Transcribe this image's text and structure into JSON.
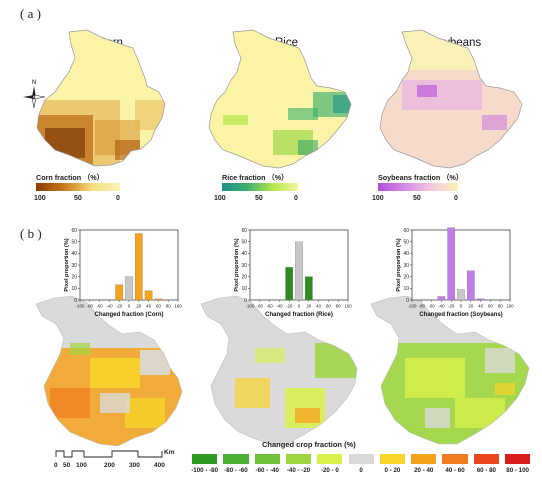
{
  "panel_a": {
    "label": "( a )",
    "maps": [
      {
        "title": "Corn",
        "colorbar_title": "Corn fraction （%）",
        "ticks": [
          "100",
          "50",
          "0"
        ],
        "gradient": [
          "#8a3a06",
          "#c97a16",
          "#f5dd7e",
          "#faf4b6"
        ]
      },
      {
        "title": "Rice",
        "colorbar_title": "Rice fraction （%）",
        "ticks": [
          "100",
          "50",
          "0"
        ],
        "gradient": [
          "#1f8f8e",
          "#3cb06d",
          "#b4e84a",
          "#f4f6a0"
        ]
      },
      {
        "title": "Soybeans",
        "colorbar_title": "Soybeans fraction （%）",
        "ticks": [
          "100",
          "50",
          "0"
        ],
        "gradient": [
          "#b34ddb",
          "#d68be6",
          "#f2c8df",
          "#faf4b6"
        ]
      }
    ]
  },
  "panel_b": {
    "label": "( b )",
    "legend": {
      "title": "Changed crop fraction (%)",
      "classes": [
        {
          "label": "-100 - -80",
          "color": "#2e9b23"
        },
        {
          "label": "-80 - -60",
          "color": "#4bb033"
        },
        {
          "label": "-60 - -40",
          "color": "#6dc23a"
        },
        {
          "label": "-40 - -20",
          "color": "#9fd63f"
        },
        {
          "label": "-20 - 0",
          "color": "#d9f14a"
        },
        {
          "label": "0",
          "color": "#d9d9d9"
        },
        {
          "label": "0 - 20",
          "color": "#f7d42a"
        },
        {
          "label": "20 - 40",
          "color": "#f5a21d"
        },
        {
          "label": "40 - 60",
          "color": "#f07a1e"
        },
        {
          "label": "60 - 80",
          "color": "#e9461f"
        },
        {
          "label": "80 - 100",
          "color": "#d91c1c"
        }
      ]
    },
    "scalebar": {
      "unit": "Km",
      "ticks": [
        "0",
        "50",
        "100",
        "200",
        "300",
        "400"
      ]
    }
  },
  "chart_data": [
    {
      "type": "bar",
      "title": "",
      "xlabel": "Changed fraction (Corn)",
      "ylabel": "Pixel proportion (%)",
      "x": [
        -100,
        -80,
        -60,
        -40,
        -20,
        0,
        20,
        40,
        60,
        80,
        100
      ],
      "values": [
        0,
        0,
        0,
        0,
        13,
        20,
        57,
        8,
        1,
        0,
        0
      ],
      "colors": [
        "#f5a21d",
        "#f5a21d",
        "#f5a21d",
        "#f5a21d",
        "#f5a21d",
        "#c8c8c8",
        "#f5a21d",
        "#f5a21d",
        "#f5a21d",
        "#f5a21d",
        "#f5a21d"
      ],
      "ylim": [
        0,
        60
      ],
      "yticks": [
        0,
        10,
        20,
        30,
        40,
        50,
        60
      ],
      "xtick_labels": [
        "-100",
        "-80",
        "-60",
        "-40",
        "-20",
        "0",
        "20",
        "40",
        "60",
        "80",
        "100"
      ]
    },
    {
      "type": "bar",
      "title": "",
      "xlabel": "Changed fraction (Rice)",
      "ylabel": "Pixel proportion (%)",
      "x": [
        -100,
        -80,
        -60,
        -40,
        -20,
        0,
        20,
        40,
        60,
        80,
        100
      ],
      "values": [
        0,
        0,
        0,
        0,
        28,
        50,
        20,
        0,
        0,
        0,
        0
      ],
      "colors": [
        "#2e8b1f",
        "#2e8b1f",
        "#2e8b1f",
        "#2e8b1f",
        "#2e8b1f",
        "#c8c8c8",
        "#2e8b1f",
        "#2e8b1f",
        "#2e8b1f",
        "#2e8b1f",
        "#2e8b1f"
      ],
      "ylim": [
        0,
        60
      ],
      "yticks": [
        0,
        10,
        20,
        30,
        40,
        50,
        60
      ],
      "xtick_labels": [
        "-100",
        "-80",
        "-60",
        "-40",
        "-20",
        "0",
        "20",
        "40",
        "60",
        "80",
        "100"
      ]
    },
    {
      "type": "bar",
      "title": "",
      "xlabel": "Changed fraction (Soybeans)",
      "ylabel": "Pixel proportion (%)",
      "x": [
        -100,
        -80,
        -60,
        -40,
        -20,
        0,
        20,
        40,
        60,
        80,
        100
      ],
      "values": [
        0,
        0,
        0,
        3,
        62,
        9,
        25,
        1,
        0,
        0,
        0
      ],
      "colors": [
        "#c27ae8",
        "#c27ae8",
        "#c27ae8",
        "#c27ae8",
        "#c27ae8",
        "#c8c8c8",
        "#c27ae8",
        "#c27ae8",
        "#c27ae8",
        "#c27ae8",
        "#c27ae8"
      ],
      "ylim": [
        0,
        60
      ],
      "yticks": [
        0,
        10,
        20,
        30,
        40,
        50,
        60
      ],
      "xtick_labels": [
        "-100",
        "-80",
        "-60",
        "-40",
        "-20",
        "0",
        "20",
        "40",
        "60",
        "80",
        "100"
      ]
    }
  ]
}
